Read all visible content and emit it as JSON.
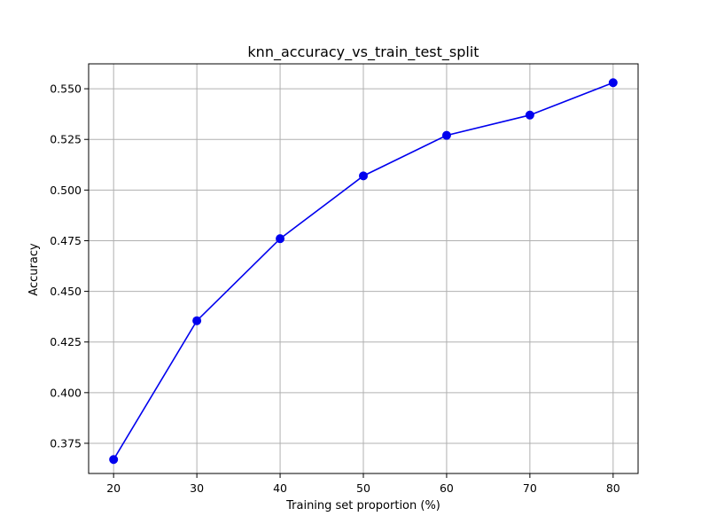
{
  "chart_data": {
    "type": "line",
    "title": "knn_accuracy_vs_train_test_split",
    "xlabel": "Training set proportion (%)",
    "ylabel": "Accuracy",
    "x": [
      20,
      30,
      40,
      50,
      60,
      70,
      80
    ],
    "series": [
      {
        "values": [
          0.367,
          0.4355,
          0.476,
          0.507,
          0.527,
          0.537,
          0.553
        ],
        "color": "#0000ee",
        "marker": "circle"
      }
    ],
    "xlim": [
      17,
      83
    ],
    "ylim": [
      0.3601,
      0.5623
    ],
    "xticks": [
      20,
      30,
      40,
      50,
      60,
      70,
      80
    ],
    "yticks": [
      0.375,
      0.4,
      0.425,
      0.45,
      0.475,
      0.5,
      0.525,
      0.55
    ],
    "ytick_labels": [
      "0.375",
      "0.400",
      "0.425",
      "0.450",
      "0.475",
      "0.500",
      "0.525",
      "0.550"
    ],
    "grid": true
  }
}
